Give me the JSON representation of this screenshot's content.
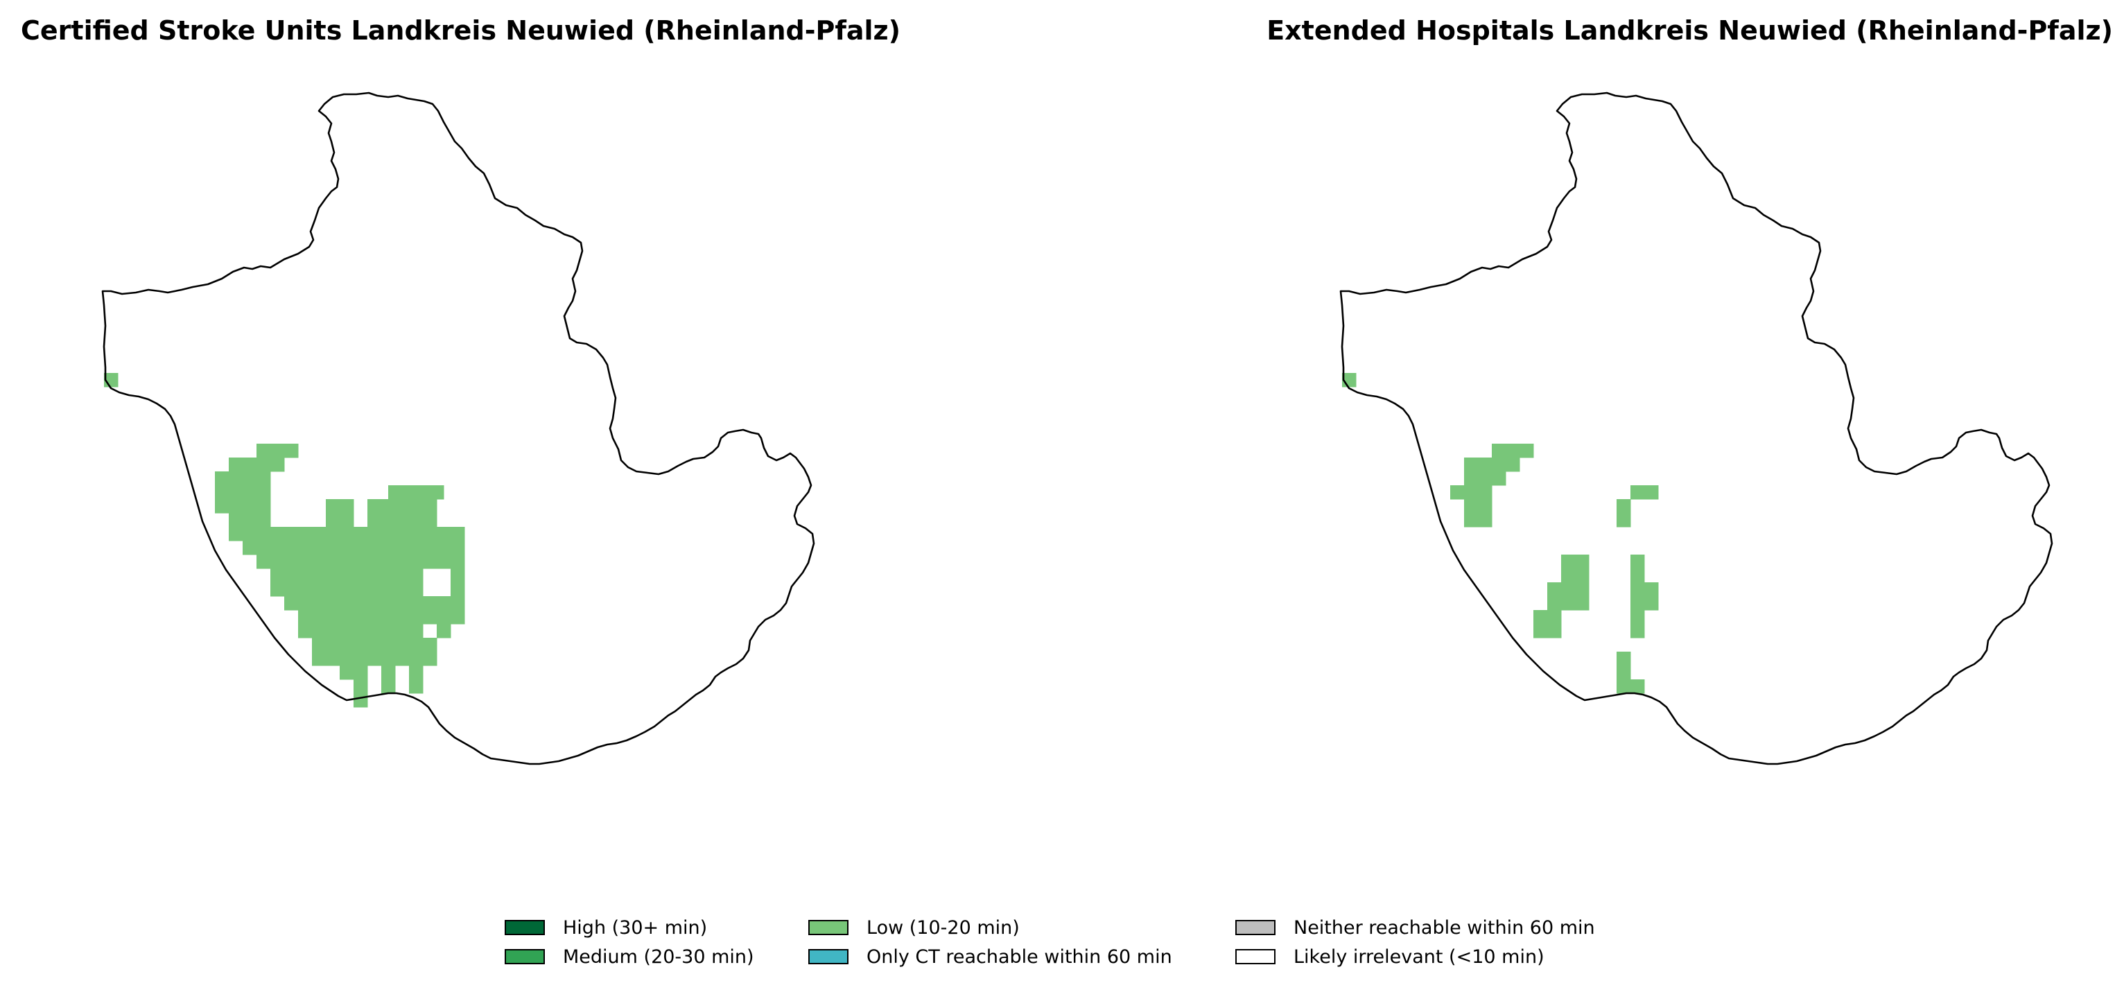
{
  "panels": {
    "left": {
      "title": "Certified Stroke Units Landkreis Neuwied (Rheinland-Pfalz)"
    },
    "right": {
      "title": "Extended Hospitals Landkreis Neuwied (Rheinland-Pfalz)"
    }
  },
  "legend": {
    "items": [
      {
        "label": "High (30+ min)",
        "color": "#006837"
      },
      {
        "label": "Medium (20-30 min)",
        "color": "#31a354"
      },
      {
        "label": "Low (10-20 min)",
        "color": "#78c679"
      },
      {
        "label": "Only CT reachable within 60 min",
        "color": "#41b6c4"
      },
      {
        "label": "Neither reachable within 60 min",
        "color": "#bdbdbd"
      },
      {
        "label": "Likely irrelevant (<10 min)",
        "color": "#ffffff"
      }
    ]
  },
  "colors": {
    "low": "#78c679",
    "outline": "#000000",
    "background": "#ffffff"
  }
}
